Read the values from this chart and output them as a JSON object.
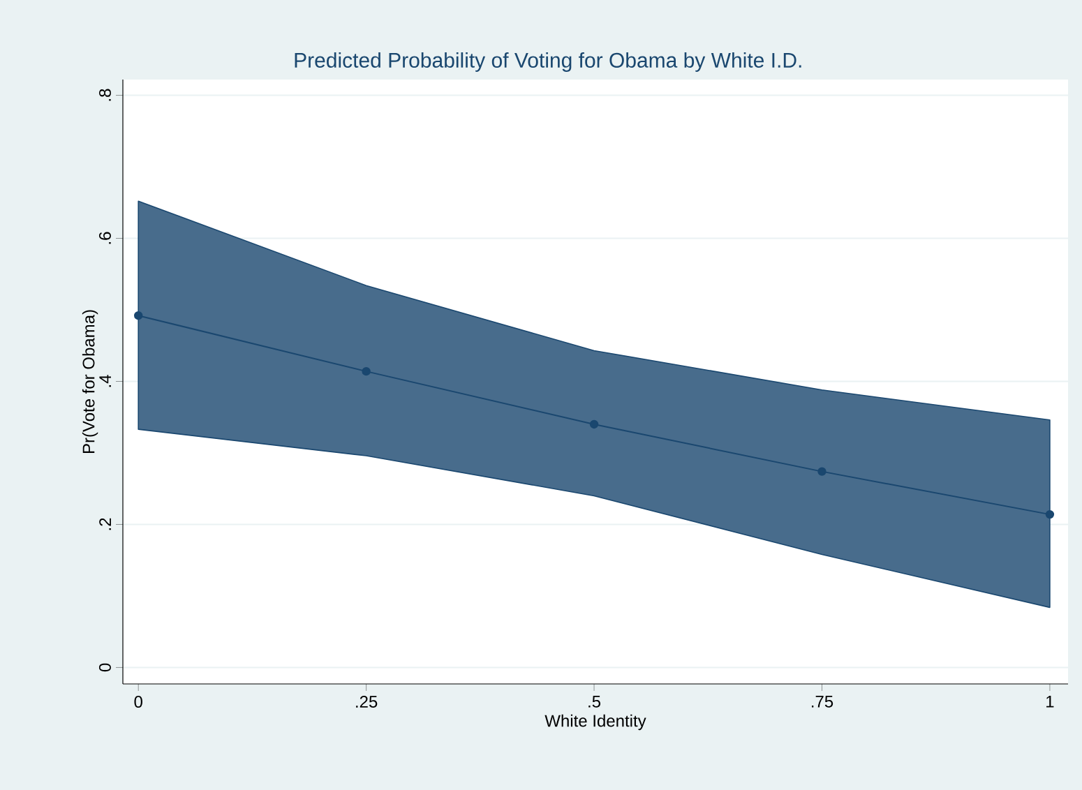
{
  "chart_data": {
    "type": "line",
    "title": "Predicted Probability of Voting for Obama by White I.D.",
    "xlabel": "White Identity",
    "ylabel": "Pr(Vote for Obama)",
    "x": [
      0,
      0.25,
      0.5,
      0.75,
      1
    ],
    "series": [
      {
        "color": "#1a476f",
        "values": [
          0.492,
          0.414,
          0.34,
          0.274,
          0.214
        ],
        "lower": [
          0.333,
          0.296,
          0.24,
          0.158,
          0.084
        ],
        "upper": [
          0.652,
          0.534,
          0.443,
          0.388,
          0.346
        ]
      }
    ],
    "xlim": [
      -0.017,
      1.02
    ],
    "ylim": [
      -0.023,
      0.822
    ],
    "xticks": [
      0,
      {
        "value": 0.25,
        "label": ".25"
      },
      {
        "value": 0.5,
        "label": ".5"
      },
      {
        "value": 0.75,
        "label": ".75"
      },
      1
    ],
    "yticks": [
      0,
      {
        "value": 0.2,
        "label": ".2"
      },
      {
        "value": 0.4,
        "label": ".4"
      },
      {
        "value": 0.6,
        "label": ".6"
      },
      {
        "value": 0.8,
        "label": ".8"
      }
    ],
    "grid": "y",
    "marker": "circle",
    "line_style": "solid"
  }
}
